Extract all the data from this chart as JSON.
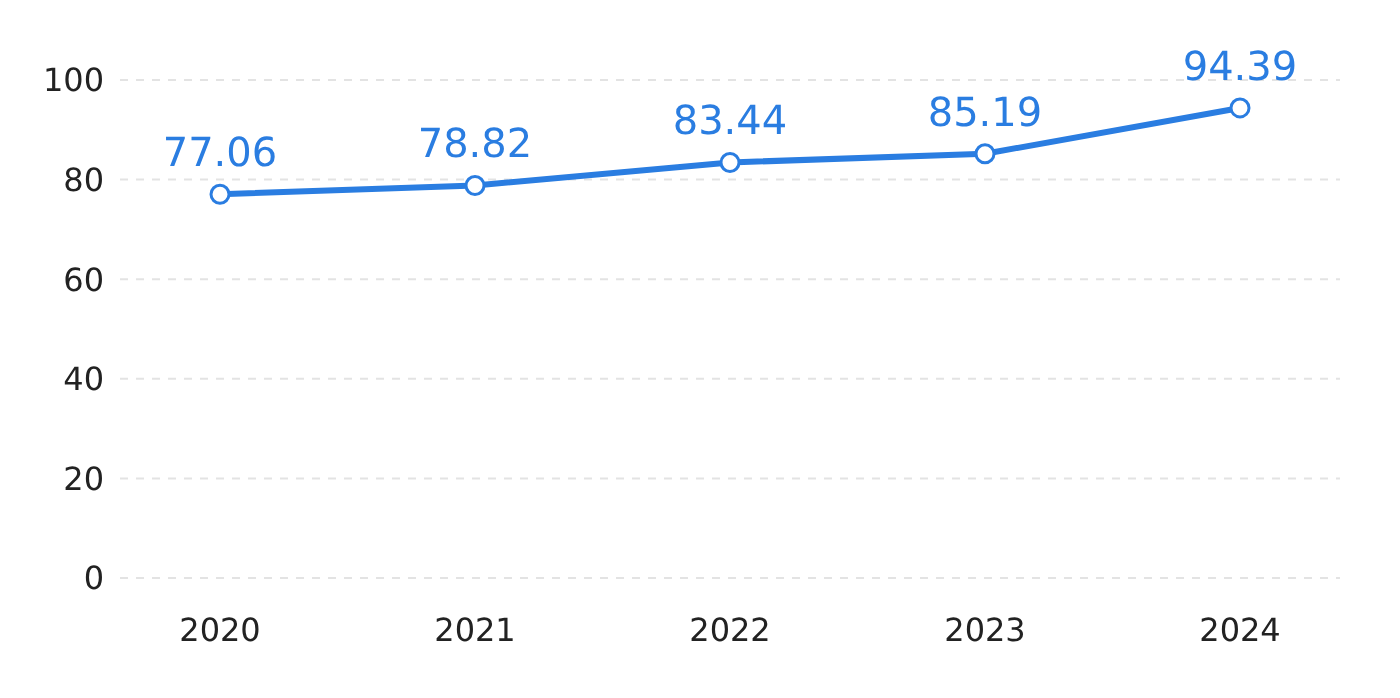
{
  "chart_data": {
    "type": "line",
    "categories": [
      "2020",
      "2021",
      "2022",
      "2023",
      "2024"
    ],
    "series": [
      {
        "color": "#2a7de1",
        "values": [
          77.06,
          78.82,
          83.44,
          85.19,
          94.39
        ]
      }
    ],
    "ylim": [
      0,
      100
    ],
    "yticks": [
      0,
      20,
      40,
      60,
      80,
      100
    ],
    "grid": "y",
    "marker": "circle",
    "line_style": "solid",
    "data_labels": true,
    "legend": false
  }
}
